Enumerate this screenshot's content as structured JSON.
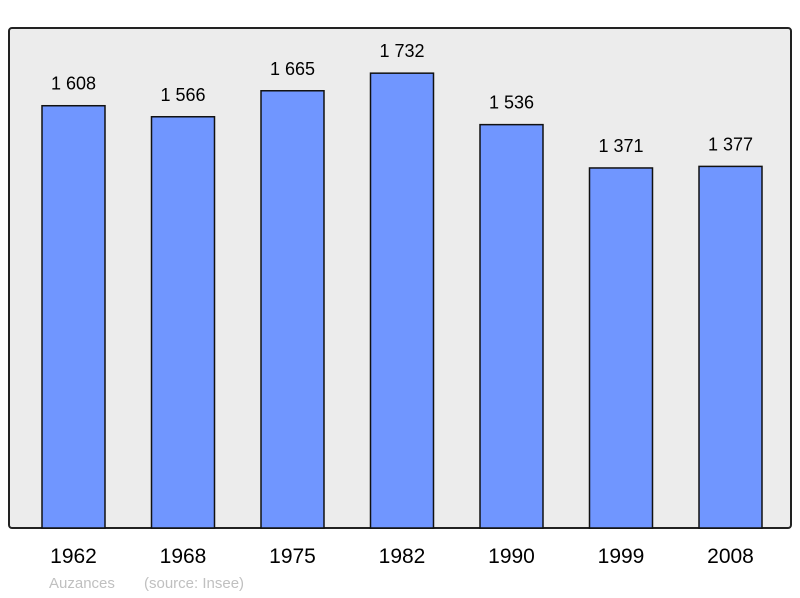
{
  "chart_data": {
    "type": "bar",
    "categories": [
      "1962",
      "1968",
      "1975",
      "1982",
      "1990",
      "1999",
      "2008"
    ],
    "values": [
      1608,
      1566,
      1665,
      1732,
      1536,
      1371,
      1377
    ],
    "value_labels": [
      "1 608",
      "1 566",
      "1 665",
      "1 732",
      "1 536",
      "1 371",
      "1 377"
    ],
    "ylim": [
      0,
      1904
    ],
    "grid": false,
    "legend": "none",
    "colors": {
      "bar": "#7096ff",
      "background": "#ececec",
      "stroke": "#000000"
    }
  },
  "footer": {
    "place": "Auzances",
    "source": "(source: Insee)"
  }
}
